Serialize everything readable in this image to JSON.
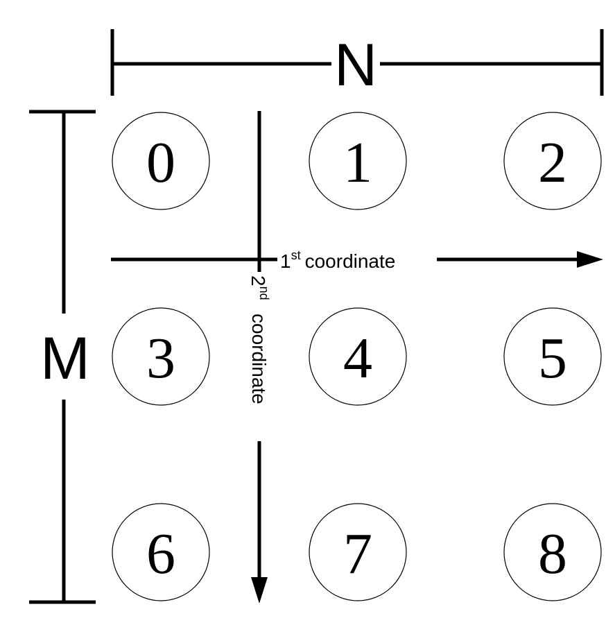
{
  "dimensions": {
    "n_label": "N",
    "m_label": "M"
  },
  "axes": {
    "first": {
      "number": "1",
      "suffix": "st",
      "word": "coordinate"
    },
    "second": {
      "number": "2",
      "suffix": "nd",
      "word": "coordinate"
    }
  },
  "nodes": [
    "0",
    "1",
    "2",
    "3",
    "4",
    "5",
    "6",
    "7",
    "8"
  ]
}
